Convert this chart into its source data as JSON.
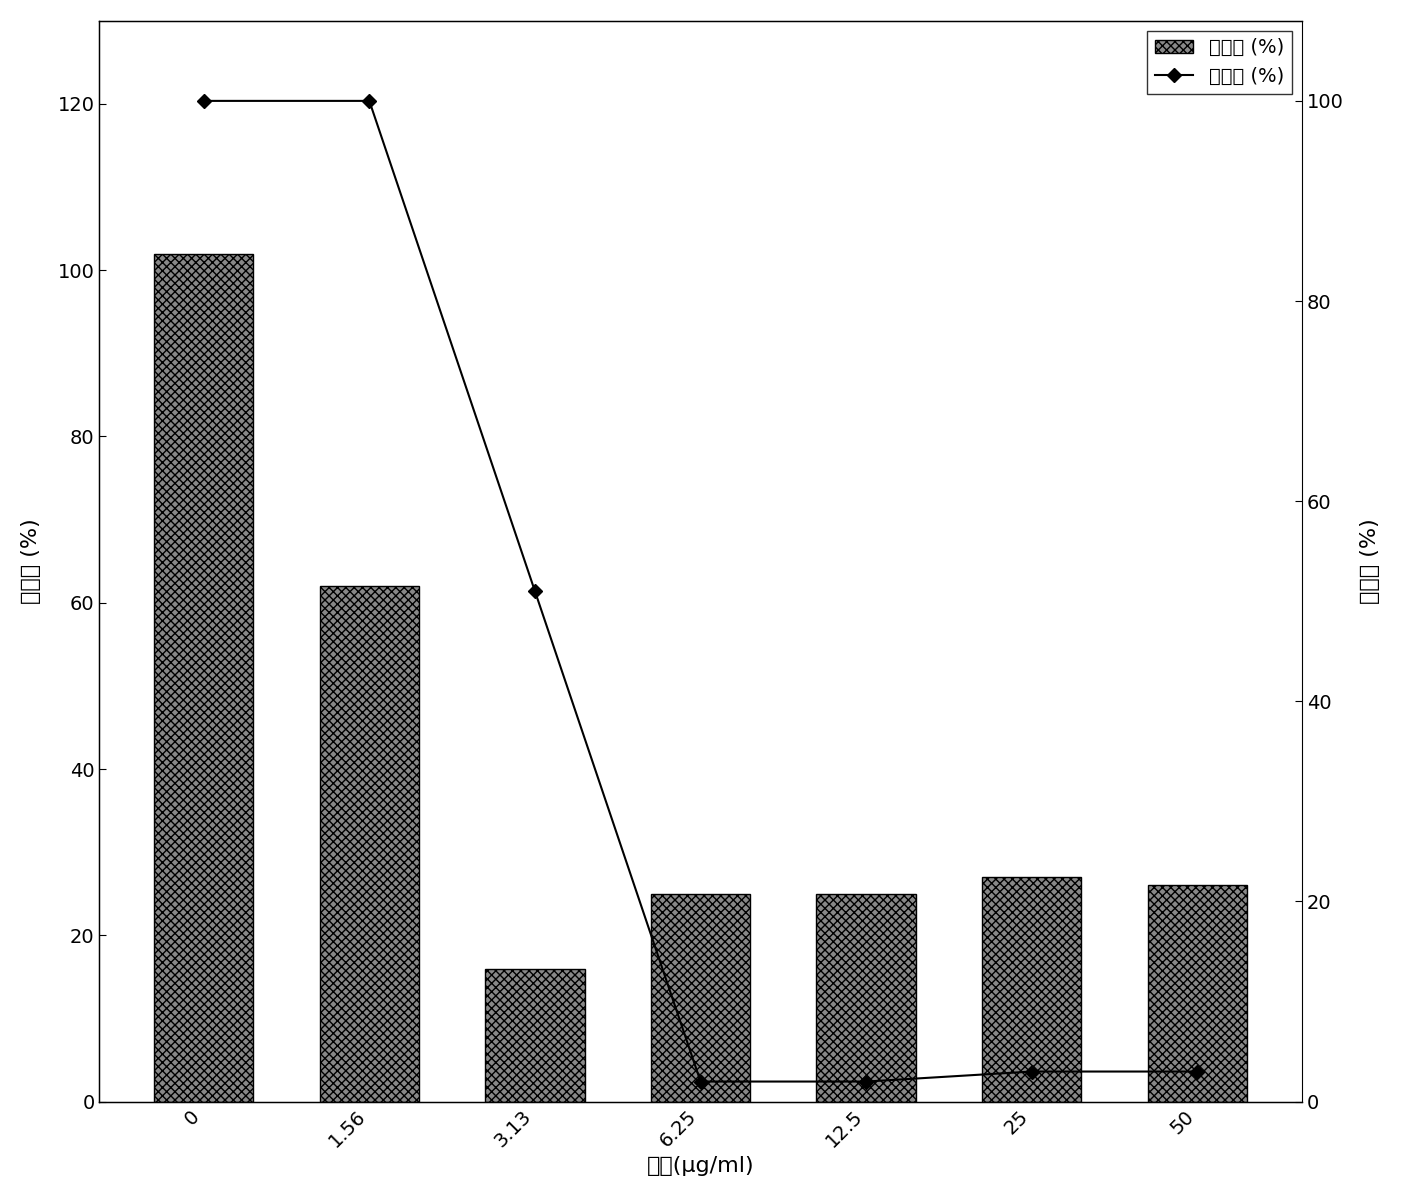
{
  "categories": [
    "0",
    "1.56",
    "3.13",
    "6.25",
    "12.5",
    "25",
    "50"
  ],
  "bar_values": [
    102,
    62,
    16,
    25,
    25,
    27,
    26
  ],
  "line_values": [
    100,
    100,
    51,
    2,
    2,
    3,
    3
  ],
  "bar_facecolor": "#888888",
  "bar_hatch": "xxxx",
  "line_color": "#000000",
  "marker": "D",
  "marker_size": 7,
  "left_ylabel": "粘附率 (%)",
  "right_ylabel": "生长率 (%)",
  "xlabel": "浓度(μg/ml)",
  "legend_bar_label": "粘附性 (%)",
  "legend_line_label": "生长率 (%)",
  "left_ylim": [
    0,
    130
  ],
  "right_ylim": [
    0,
    108
  ],
  "left_yticks": [
    0,
    20,
    40,
    60,
    80,
    100,
    120
  ],
  "right_yticks": [
    0,
    20,
    40,
    60,
    80,
    100
  ],
  "background_color": "#ffffff",
  "label_fontsize": 16,
  "tick_fontsize": 14,
  "legend_fontsize": 14
}
